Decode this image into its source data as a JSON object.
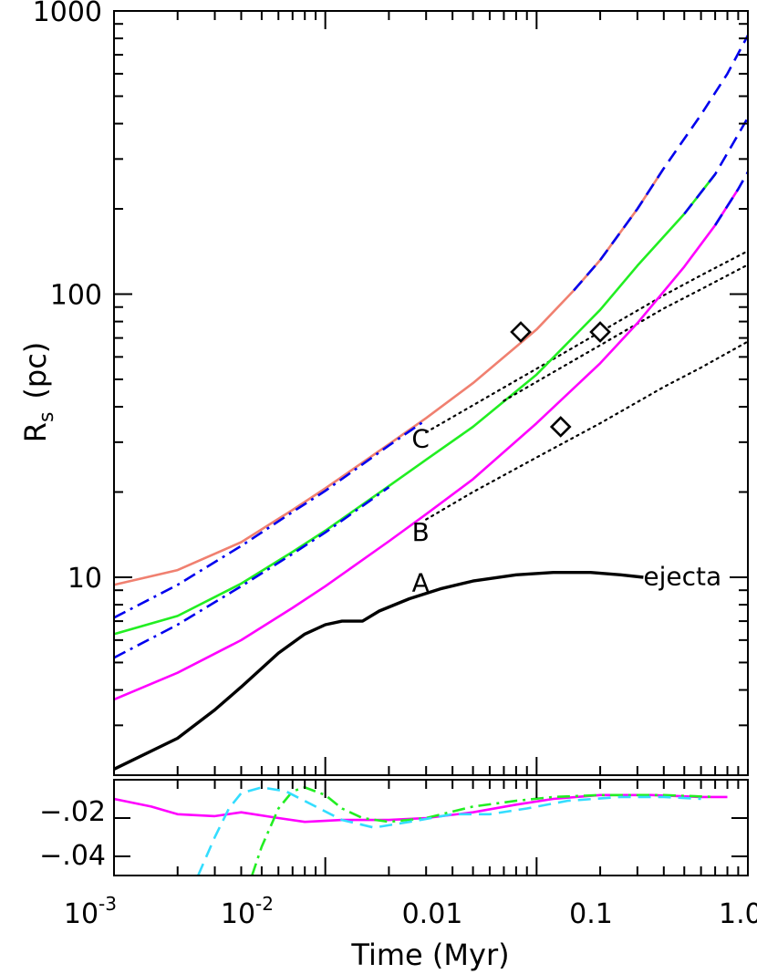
{
  "chart_data": [
    {
      "panel": "main",
      "type": "line",
      "scale": "log-log",
      "xlim": [
        0.001,
        1.0
      ],
      "ylim": [
        2.0,
        1000
      ],
      "ylabel": {
        "main": "R",
        "sub": "s",
        "unit": "(pc)"
      },
      "ytick_labels": [
        "10",
        "100",
        "1000"
      ],
      "ytick_values": [
        10,
        100,
        1000
      ],
      "colors": {
        "orange": "#f08070",
        "green": "#22ee22",
        "magenta": "#ff00ff",
        "blue": "#0000ee",
        "black": "#000000"
      },
      "annotations": [
        {
          "text": "A",
          "x": 0.03,
          "y": 9.6
        },
        {
          "text": "B",
          "x": 0.03,
          "y": 14.5
        },
        {
          "text": "C",
          "x": 0.03,
          "y": 31.0
        },
        {
          "text": "ejecta",
          "x": 0.32,
          "y": 10.1
        }
      ],
      "series": [
        {
          "key": "C_orange",
          "color": "orange",
          "style": "solid",
          "points": [
            [
              0.001,
              9.4
            ],
            [
              0.002,
              10.6
            ],
            [
              0.004,
              13.3
            ],
            [
              0.007,
              17.3
            ],
            [
              0.01,
              20.6
            ],
            [
              0.02,
              29.5
            ],
            [
              0.03,
              36.5
            ],
            [
              0.05,
              48.5
            ],
            [
              0.1,
              75.0
            ],
            [
              0.15,
              103
            ],
            [
              0.2,
              132
            ],
            [
              0.3,
              200
            ],
            [
              0.4,
              278
            ]
          ]
        },
        {
          "key": "C_blue_dashed",
          "color": "blue",
          "style": "dashed",
          "points": [
            [
              0.15,
              103
            ],
            [
              0.2,
              132
            ],
            [
              0.3,
              200
            ],
            [
              0.4,
              278
            ],
            [
              0.6,
              430
            ],
            [
              0.8,
              600
            ],
            [
              1.0,
              820
            ]
          ]
        },
        {
          "key": "C_blue_dashdot",
          "color": "blue",
          "style": "dashdot",
          "points": [
            [
              0.001,
              7.2
            ],
            [
              0.002,
              9.4
            ],
            [
              0.004,
              12.9
            ],
            [
              0.007,
              17.0
            ],
            [
              0.01,
              20.2
            ],
            [
              0.02,
              29.2
            ],
            [
              0.03,
              36.0
            ]
          ]
        },
        {
          "key": "C_fit_dotted",
          "color": "black",
          "style": "dotted",
          "points": [
            [
              0.03,
              32.5
            ],
            [
              0.05,
              40.5
            ],
            [
              0.1,
              54.5
            ],
            [
              0.2,
              73.5
            ],
            [
              0.4,
              99.0
            ],
            [
              0.6,
              116.5
            ],
            [
              1.0,
              142.0
            ]
          ]
        },
        {
          "key": "B_green",
          "color": "green",
          "style": "solid",
          "points": [
            [
              0.001,
              6.3
            ],
            [
              0.002,
              7.3
            ],
            [
              0.004,
              9.5
            ],
            [
              0.007,
              12.3
            ],
            [
              0.01,
              14.6
            ],
            [
              0.02,
              21.0
            ],
            [
              0.03,
              26.0
            ],
            [
              0.05,
              34.0
            ],
            [
              0.1,
              52.0
            ],
            [
              0.2,
              88.0
            ],
            [
              0.3,
              126
            ],
            [
              0.5,
              192
            ],
            [
              0.7,
              265
            ]
          ]
        },
        {
          "key": "B_blue_dashed",
          "color": "blue",
          "style": "dashed",
          "points": [
            [
              0.5,
              192
            ],
            [
              0.7,
              265
            ],
            [
              0.85,
              340
            ],
            [
              1.0,
              420
            ]
          ]
        },
        {
          "key": "B_blue_dashdot",
          "color": "blue",
          "style": "dashdot",
          "points": [
            [
              0.001,
              5.2
            ],
            [
              0.002,
              6.8
            ],
            [
              0.004,
              9.3
            ],
            [
              0.007,
              12.1
            ],
            [
              0.01,
              14.4
            ],
            [
              0.02,
              20.8
            ]
          ]
        },
        {
          "key": "B_fit_dotted",
          "color": "black",
          "style": "dotted",
          "points": [
            [
              0.07,
              42.0
            ],
            [
              0.1,
              49.0
            ],
            [
              0.2,
              66.0
            ],
            [
              0.4,
              89.0
            ],
            [
              0.6,
              104.0
            ],
            [
              1.0,
              127.0
            ]
          ]
        },
        {
          "key": "A_magenta",
          "color": "magenta",
          "style": "solid",
          "points": [
            [
              0.001,
              3.7
            ],
            [
              0.002,
              4.6
            ],
            [
              0.004,
              6.0
            ],
            [
              0.007,
              7.8
            ],
            [
              0.01,
              9.3
            ],
            [
              0.02,
              13.4
            ],
            [
              0.03,
              16.7
            ],
            [
              0.05,
              22.2
            ],
            [
              0.1,
              35.0
            ],
            [
              0.2,
              57.0
            ],
            [
              0.3,
              79.0
            ],
            [
              0.5,
              125
            ],
            [
              0.7,
              175
            ],
            [
              0.9,
              235
            ]
          ]
        },
        {
          "key": "A_blue_dashed",
          "color": "blue",
          "style": "dashed",
          "points": [
            [
              0.7,
              175
            ],
            [
              0.9,
              235
            ],
            [
              1.0,
              270
            ]
          ]
        },
        {
          "key": "A_fit_dotted",
          "color": "black",
          "style": "dotted",
          "points": [
            [
              0.03,
              16.0
            ],
            [
              0.05,
              20.0
            ],
            [
              0.1,
              26.5
            ],
            [
              0.2,
              35.0
            ],
            [
              0.4,
              47.0
            ],
            [
              0.6,
              55.0
            ],
            [
              1.0,
              68.0
            ]
          ]
        },
        {
          "key": "ejecta",
          "color": "black",
          "style": "solid",
          "points": [
            [
              0.001,
              2.1
            ],
            [
              0.002,
              2.7
            ],
            [
              0.003,
              3.4
            ],
            [
              0.004,
              4.1
            ],
            [
              0.006,
              5.4
            ],
            [
              0.008,
              6.3
            ],
            [
              0.01,
              6.8
            ],
            [
              0.012,
              7.0
            ],
            [
              0.014,
              7.0
            ],
            [
              0.015,
              7.0
            ],
            [
              0.018,
              7.6
            ],
            [
              0.025,
              8.4
            ],
            [
              0.035,
              9.1
            ],
            [
              0.05,
              9.7
            ],
            [
              0.08,
              10.2
            ],
            [
              0.12,
              10.4
            ],
            [
              0.18,
              10.4
            ],
            [
              0.25,
              10.2
            ],
            [
              0.32,
              10.0
            ]
          ]
        }
      ],
      "markers": [
        {
          "symbol": "diamond",
          "x": 0.0842,
          "y": 73.5
        },
        {
          "symbol": "diamond",
          "x": 0.2,
          "y": 73.5
        },
        {
          "symbol": "diamond",
          "x": 0.13,
          "y": 34.0
        }
      ]
    },
    {
      "panel": "residual",
      "type": "line",
      "xlim": [
        0.001,
        1.0
      ],
      "ylim": [
        -0.05,
        0.0
      ],
      "xlabel": "Time (Myr)",
      "xtick_labels": [
        "10",
        "-3",
        "10",
        "-2",
        "0.01",
        "0.1",
        "1.0"
      ],
      "ytick_labels": [
        "−.02",
        "−.04"
      ],
      "ytick_values": [
        -0.02,
        -0.04
      ],
      "colors": {
        "magenta": "#ff00ff",
        "green": "#22ee22",
        "cyan": "#33ddff"
      },
      "series": [
        {
          "key": "res_magenta",
          "color": "magenta",
          "style": "solid",
          "points": [
            [
              0.001,
              -0.01
            ],
            [
              0.0015,
              -0.014
            ],
            [
              0.002,
              -0.018
            ],
            [
              0.003,
              -0.019
            ],
            [
              0.004,
              -0.017
            ],
            [
              0.006,
              -0.02
            ],
            [
              0.008,
              -0.022
            ],
            [
              0.012,
              -0.021
            ],
            [
              0.02,
              -0.021
            ],
            [
              0.03,
              -0.02
            ],
            [
              0.05,
              -0.017
            ],
            [
              0.08,
              -0.013
            ],
            [
              0.12,
              -0.01
            ],
            [
              0.2,
              -0.008
            ],
            [
              0.35,
              -0.008
            ],
            [
              0.6,
              -0.009
            ],
            [
              0.8,
              -0.009
            ]
          ]
        },
        {
          "key": "res_green",
          "color": "green",
          "style": "dashdot",
          "points": [
            [
              0.0045,
              -0.05
            ],
            [
              0.005,
              -0.035
            ],
            [
              0.006,
              -0.015
            ],
            [
              0.007,
              -0.006
            ],
            [
              0.008,
              -0.004
            ],
            [
              0.01,
              -0.008
            ],
            [
              0.012,
              -0.015
            ],
            [
              0.015,
              -0.02
            ],
            [
              0.02,
              -0.022
            ],
            [
              0.03,
              -0.02
            ],
            [
              0.05,
              -0.014
            ],
            [
              0.08,
              -0.011
            ],
            [
              0.12,
              -0.009
            ],
            [
              0.2,
              -0.008
            ],
            [
              0.4,
              -0.008
            ],
            [
              0.7,
              -0.009
            ]
          ]
        },
        {
          "key": "res_cyan",
          "color": "cyan",
          "style": "dashed",
          "points": [
            [
              0.0025,
              -0.05
            ],
            [
              0.003,
              -0.03
            ],
            [
              0.0035,
              -0.015
            ],
            [
              0.004,
              -0.007
            ],
            [
              0.005,
              -0.004
            ],
            [
              0.0065,
              -0.006
            ],
            [
              0.009,
              -0.014
            ],
            [
              0.012,
              -0.021
            ],
            [
              0.017,
              -0.025
            ],
            [
              0.025,
              -0.022
            ],
            [
              0.04,
              -0.018
            ],
            [
              0.06,
              -0.018
            ],
            [
              0.09,
              -0.015
            ],
            [
              0.14,
              -0.011
            ],
            [
              0.25,
              -0.009
            ],
            [
              0.4,
              -0.009
            ],
            [
              0.6,
              -0.01
            ]
          ]
        }
      ]
    }
  ]
}
